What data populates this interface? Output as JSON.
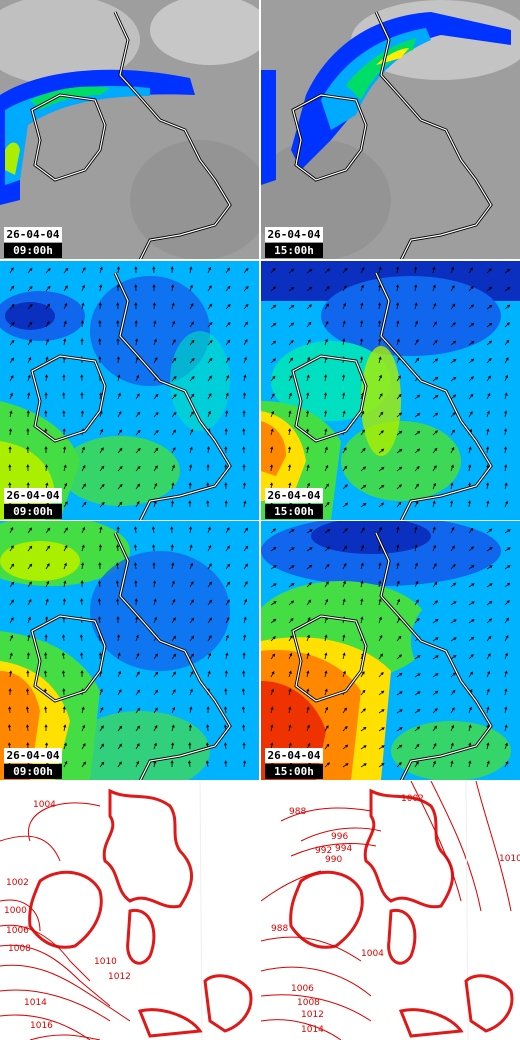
{
  "panels": [
    {
      "id": "cloud-0900",
      "kind": "cloud",
      "date": "26-04-04",
      "time": "09:00h"
    },
    {
      "id": "cloud-1500",
      "kind": "cloud",
      "date": "26-04-04",
      "time": "15:00h"
    },
    {
      "id": "wind-a-0900",
      "kind": "wind",
      "date": "26-04-04",
      "time": "09:00h"
    },
    {
      "id": "wind-a-1500",
      "kind": "wind",
      "date": "26-04-04",
      "time": "15:00h"
    },
    {
      "id": "wind-b-0900",
      "kind": "wind",
      "date": "26-04-04",
      "time": "09:00h"
    },
    {
      "id": "wind-b-1500",
      "kind": "wind",
      "date": "26-04-04",
      "time": "15:00h"
    },
    {
      "id": "pressure-0900",
      "kind": "pressure",
      "isobars": [
        "1004",
        "1002",
        "1000",
        "1006",
        "1008",
        "1010",
        "1012",
        "1014",
        "1016"
      ]
    },
    {
      "id": "pressure-1500",
      "kind": "pressure",
      "isobars": [
        "988",
        "996",
        "994",
        "992",
        "990",
        "1002",
        "1010",
        "1004",
        "1006",
        "1008",
        "1012",
        "1014",
        "988"
      ]
    }
  ],
  "colors": {
    "cloud_bg": "#9a9a9a",
    "rain": [
      "#0033ff",
      "#00aaff",
      "#00dd66",
      "#aaee00",
      "#ffee00"
    ],
    "wind": [
      "#0b2fbf",
      "#1166ee",
      "#00b3ff",
      "#00e0c0",
      "#44dd44",
      "#aaee00",
      "#ffe000",
      "#ff8800",
      "#ee3300"
    ],
    "isobar": "#dd0000",
    "coast": "#ffffff"
  }
}
